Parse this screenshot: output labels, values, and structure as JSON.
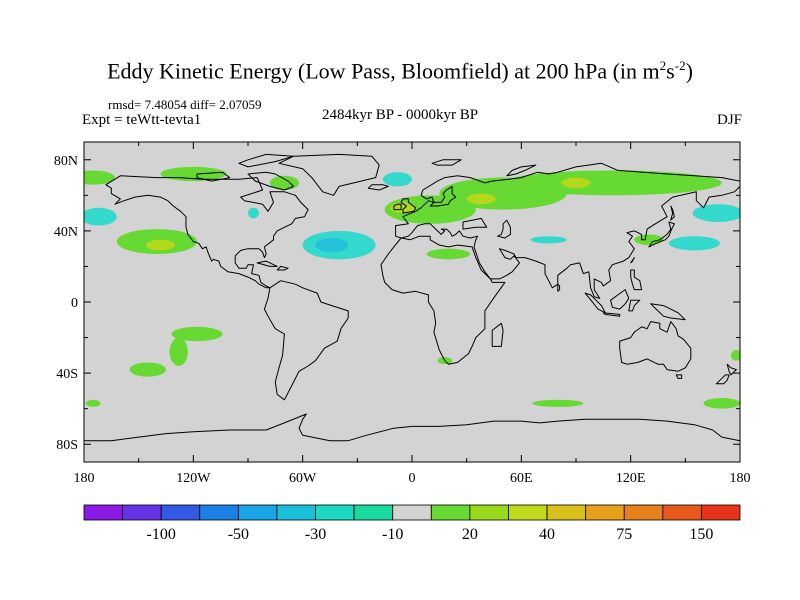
{
  "title": {
    "main": "Eddy Kinetic Energy (Low Pass, Bloomfield) at 200 hPa (in m",
    "sup1": "2",
    "mid": "s",
    "sup2": "-2",
    "close": ")"
  },
  "stats": "rmsd= 7.48054 diff= 2.07059",
  "experiment": "Expt = teWtt-tevta1",
  "period": "2484kyr BP - 0000kyr BP",
  "season": "DJF",
  "colors": {
    "background_field": "#d3d3d3",
    "ocean_outline": "#000000",
    "green_light": "#66d933",
    "green_mid": "#b3d91a",
    "cyan_light": "#33d9cc",
    "cyan_mid": "#26c0d9"
  },
  "chart_data": {
    "type": "heatmap",
    "title": "Eddy Kinetic Energy (Low Pass, Bloomfield) at 200 hPa (in m^2 s^-2)",
    "projection": "cylindrical-equidistant",
    "xlim": [
      -180,
      180
    ],
    "ylim": [
      -90,
      90
    ],
    "x_ticks": [
      {
        "value": -180,
        "label": "180"
      },
      {
        "value": -120,
        "label": "120W"
      },
      {
        "value": -60,
        "label": "60W"
      },
      {
        "value": 0,
        "label": "0"
      },
      {
        "value": 60,
        "label": "60E"
      },
      {
        "value": 120,
        "label": "120E"
      },
      {
        "value": 180,
        "label": "180"
      }
    ],
    "y_ticks": [
      {
        "value": 80,
        "label": "80N"
      },
      {
        "value": 40,
        "label": "40N"
      },
      {
        "value": 0,
        "label": "0"
      },
      {
        "value": -40,
        "label": "40S"
      },
      {
        "value": -80,
        "label": "80S"
      }
    ],
    "colorbar": {
      "colors": [
        "#8c1ae6",
        "#6633e6",
        "#3359e6",
        "#1a80e6",
        "#1aa6e6",
        "#1ac0d9",
        "#1ad9c0",
        "#1ad99e",
        "#d3d3d3",
        "#66d933",
        "#99d91a",
        "#c0d91a",
        "#d9c01a",
        "#e6a01a",
        "#e6801a",
        "#e6591a",
        "#e6331a"
      ],
      "labels": [
        "-100",
        "-50",
        "-30",
        "-10",
        "20",
        "40",
        "75",
        "150"
      ],
      "label_positions": [
        2,
        4,
        6,
        8,
        10,
        12,
        14,
        16
      ]
    },
    "anomaly_regions": [
      {
        "lon": -140,
        "lat": 34,
        "rlon": 22,
        "rlat": 7,
        "level": "green_light"
      },
      {
        "lon": -138,
        "lat": 32,
        "rlon": 8,
        "rlat": 3,
        "level": "green_mid"
      },
      {
        "lon": -175,
        "lat": 70,
        "rlon": 12,
        "rlat": 4,
        "level": "green_light"
      },
      {
        "lon": -120,
        "lat": 72,
        "rlon": 18,
        "rlat": 4,
        "level": "green_light"
      },
      {
        "lon": -70,
        "lat": 67,
        "rlon": 8,
        "rlat": 4,
        "level": "green_light"
      },
      {
        "lon": -87,
        "lat": 50,
        "rlon": 3,
        "rlat": 3,
        "level": "cyan_light"
      },
      {
        "lon": -40,
        "lat": 32,
        "rlon": 20,
        "rlat": 8,
        "level": "cyan_light"
      },
      {
        "lon": -44,
        "lat": 32,
        "rlon": 9,
        "rlat": 4,
        "level": "cyan_mid"
      },
      {
        "lon": -8,
        "lat": 69,
        "rlon": 8,
        "rlat": 4,
        "level": "cyan_light"
      },
      {
        "lon": 10,
        "lat": 52,
        "rlon": 25,
        "rlat": 8,
        "level": "green_light"
      },
      {
        "lon": -5,
        "lat": 53,
        "rlon": 7,
        "rlat": 3,
        "level": "green_mid"
      },
      {
        "lon": 50,
        "lat": 61,
        "rlon": 35,
        "rlat": 9,
        "level": "green_light"
      },
      {
        "lon": 38,
        "lat": 58,
        "rlon": 8,
        "rlat": 3,
        "level": "green_mid"
      },
      {
        "lon": 110,
        "lat": 67,
        "rlon": 60,
        "rlat": 7,
        "level": "green_light"
      },
      {
        "lon": 90,
        "lat": 67,
        "rlon": 8,
        "rlat": 3,
        "level": "green_mid"
      },
      {
        "lon": 75,
        "lat": 35,
        "rlon": 10,
        "rlat": 2,
        "level": "cyan_light"
      },
      {
        "lon": 130,
        "lat": 35,
        "rlon": 8,
        "rlat": 3,
        "level": "green_light"
      },
      {
        "lon": 168,
        "lat": 50,
        "rlon": 14,
        "rlat": 5,
        "level": "cyan_light"
      },
      {
        "lon": 155,
        "lat": 33,
        "rlon": 14,
        "rlat": 4,
        "level": "cyan_light"
      },
      {
        "lon": -172,
        "lat": 48,
        "rlon": 10,
        "rlat": 5,
        "level": "cyan_light"
      },
      {
        "lon": 20,
        "lat": 27,
        "rlon": 12,
        "rlat": 3,
        "level": "green_light"
      },
      {
        "lon": -118,
        "lat": -18,
        "rlon": 14,
        "rlat": 4,
        "level": "green_light"
      },
      {
        "lon": -145,
        "lat": -38,
        "rlon": 10,
        "rlat": 4,
        "level": "green_light"
      },
      {
        "lon": -128,
        "lat": -28,
        "rlon": 5,
        "rlat": 8,
        "level": "green_light"
      },
      {
        "lon": 18,
        "lat": -33,
        "rlon": 4,
        "rlat": 2,
        "level": "green_light"
      },
      {
        "lon": 80,
        "lat": -57,
        "rlon": 14,
        "rlat": 2,
        "level": "green_light"
      },
      {
        "lon": 170,
        "lat": -57,
        "rlon": 10,
        "rlat": 3,
        "level": "green_light"
      },
      {
        "lon": 178,
        "lat": -30,
        "rlon": 3,
        "rlat": 3,
        "level": "green_light"
      },
      {
        "lon": -175,
        "lat": -57,
        "rlon": 4,
        "rlat": 2,
        "level": "green_light"
      }
    ]
  }
}
